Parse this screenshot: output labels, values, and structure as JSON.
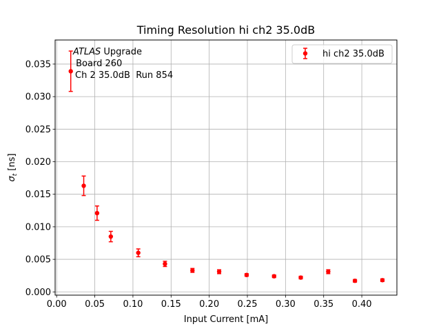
{
  "chart_data": {
    "type": "scatter",
    "title": "Timing Resolution hi ch2 35.0dB",
    "xlabel": "Input Current [mA]",
    "ylabel": "σ_t [ns]",
    "ylabel_main": "σ",
    "ylabel_sub": "t",
    "ylabel_unit": " [ns]",
    "xlim": [
      -0.002,
      0.446
    ],
    "ylim": [
      -0.0005,
      0.0387
    ],
    "xticks": [
      0.0,
      0.05,
      0.1,
      0.15,
      0.2,
      0.25,
      0.3,
      0.35,
      0.4
    ],
    "xtick_labels": [
      "0.00",
      "0.05",
      "0.10",
      "0.15",
      "0.20",
      "0.25",
      "0.30",
      "0.35",
      "0.40"
    ],
    "yticks": [
      0.0,
      0.005,
      0.01,
      0.015,
      0.02,
      0.025,
      0.03,
      0.035
    ],
    "ytick_labels": [
      "0.000",
      "0.005",
      "0.010",
      "0.015",
      "0.020",
      "0.025",
      "0.030",
      "0.035"
    ],
    "grid": true,
    "legend_position": "top-right",
    "series": [
      {
        "name": "hi ch2 35.0dB",
        "color": "#ff0000",
        "x": [
          0.0185,
          0.0355,
          0.053,
          0.071,
          0.107,
          0.142,
          0.178,
          0.213,
          0.249,
          0.285,
          0.32,
          0.356,
          0.391,
          0.427
        ],
        "y": [
          0.0339,
          0.0163,
          0.0121,
          0.0085,
          0.006,
          0.0043,
          0.0033,
          0.0031,
          0.0026,
          0.0024,
          0.0022,
          0.0031,
          0.0017,
          0.0018
        ],
        "yerr": [
          0.0031,
          0.0015,
          0.0011,
          0.0008,
          0.0006,
          0.0004,
          0.0003,
          0.0003,
          0.0002,
          0.0002,
          0.0002,
          0.0003,
          0.0002,
          0.0002
        ]
      }
    ],
    "annotation": {
      "line1_italic": "ATLAS",
      "line1_rest": " Upgrade",
      "line2": " Board 260",
      "line3": "Ch 2 35.0dB  Run 854"
    }
  }
}
